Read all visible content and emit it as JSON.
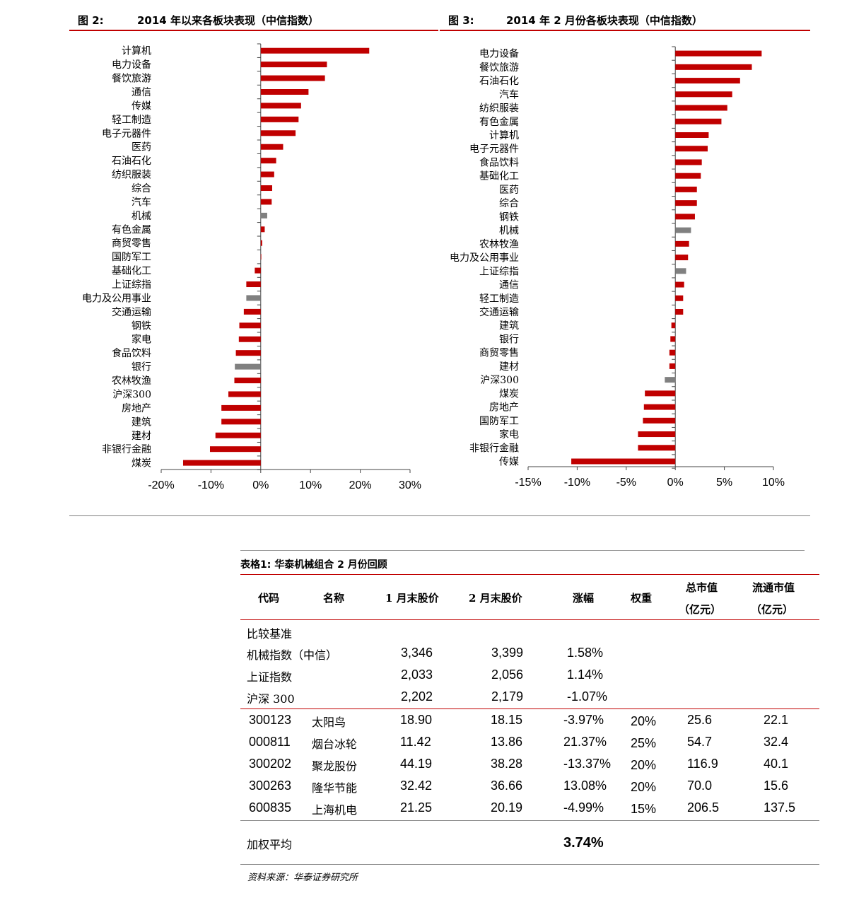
{
  "figure2": {
    "number": "图 2:",
    "title": "2014 年以来各板块表现（中信指数）"
  },
  "figure3": {
    "number": "图 3:",
    "title": "2014 年 2 月份各板块表现（中信指数）"
  },
  "chart_data": [
    {
      "type": "bar",
      "orientation": "horizontal",
      "title": "2014 年以来各板块表现（中信指数）",
      "xlim": [
        -20,
        30
      ],
      "x_ticks": [
        "-20%",
        "-10%",
        "0%",
        "10%",
        "20%",
        "30%"
      ],
      "x_tick_values": [
        -20,
        -10,
        0,
        10,
        20,
        30
      ],
      "grid": false,
      "colors": {
        "sector": "#c00000",
        "index": "#808080"
      },
      "categories": [
        "计算机",
        "电力设备",
        "餐饮旅游",
        "通信",
        "传媒",
        "轻工制造",
        "电子元器件",
        "医药",
        "石油石化",
        "纺织服装",
        "综合",
        "汽车",
        "机械",
        "有色金属",
        "商贸零售",
        "国防军工",
        "基础化工",
        "上证综指",
        "电力及公用事业",
        "交通运输",
        "钢铁",
        "家电",
        "食品饮料",
        "银行",
        "农林牧渔",
        "沪深300",
        "房地产",
        "建筑",
        "建材",
        "非银行金融",
        "煤炭"
      ],
      "values": [
        21.8,
        13.3,
        12.9,
        9.6,
        8.1,
        7.6,
        7.0,
        4.5,
        3.1,
        2.7,
        2.3,
        2.2,
        1.3,
        0.8,
        0.3,
        0.1,
        -1.2,
        -2.9,
        -2.9,
        -3.4,
        -4.3,
        -4.4,
        -5.0,
        -5.2,
        -5.3,
        -6.5,
        -7.9,
        -7.9,
        -9.1,
        -10.2,
        -15.6
      ],
      "highlight": [
        false,
        false,
        false,
        false,
        false,
        false,
        false,
        false,
        false,
        false,
        false,
        false,
        true,
        false,
        false,
        false,
        false,
        false,
        true,
        false,
        false,
        false,
        false,
        true,
        false,
        false,
        false,
        false,
        false,
        false,
        false
      ]
    },
    {
      "type": "bar",
      "orientation": "horizontal",
      "title": "2014 年 2 月份各板块表现（中信指数）",
      "xlim": [
        -15,
        10
      ],
      "x_ticks": [
        "-15%",
        "-10%",
        "-5%",
        "0%",
        "5%",
        "10%"
      ],
      "x_tick_values": [
        -15,
        -10,
        -5,
        0,
        5,
        10
      ],
      "grid": false,
      "colors": {
        "sector": "#c00000",
        "index": "#808080"
      },
      "categories": [
        "电力设备",
        "餐饮旅游",
        "石油石化",
        "汽车",
        "纺织服装",
        "有色金属",
        "计算机",
        "电子元器件",
        "食品饮料",
        "基础化工",
        "医药",
        "综合",
        "钢铁",
        "机械",
        "农林牧渔",
        "电力及公用事业",
        "上证综指",
        "通信",
        "轻工制造",
        "交通运输",
        "建筑",
        "银行",
        "商贸零售",
        "建材",
        "沪深300",
        "煤炭",
        "房地产",
        "国防军工",
        "家电",
        "非银行金融",
        "传媒"
      ],
      "values": [
        8.8,
        7.8,
        6.6,
        5.8,
        5.3,
        4.7,
        3.4,
        3.3,
        2.7,
        2.6,
        2.2,
        2.2,
        2.0,
        1.6,
        1.4,
        1.3,
        1.1,
        0.9,
        0.8,
        0.8,
        -0.4,
        -0.5,
        -0.6,
        -0.6,
        -1.07,
        -3.1,
        -3.2,
        -3.3,
        -3.8,
        -3.8,
        -10.6
      ],
      "highlight": [
        false,
        false,
        false,
        false,
        false,
        false,
        false,
        false,
        false,
        false,
        false,
        false,
        false,
        true,
        false,
        false,
        true,
        false,
        false,
        false,
        false,
        false,
        false,
        false,
        true,
        false,
        false,
        false,
        false,
        false,
        false
      ]
    }
  ],
  "table": {
    "title": "表格1:  华泰机械组合 2 月份回顾",
    "headers": {
      "code": "代码",
      "name": "名称",
      "jan_price": "1 月末股价",
      "feb_price": "2 月末股价",
      "change": "涨幅",
      "weight": "权重",
      "mcap_line1": "总市值",
      "mcap_line2": "（亿元）",
      "float_line1": "流通市值",
      "float_line2": "（亿元）"
    },
    "benchmark_label": "比较基准",
    "benchmarks": [
      {
        "name": "机械指数（中信）",
        "jan": "3,346",
        "feb": "3,399",
        "change": "1.58%"
      },
      {
        "name": "上证指数",
        "jan": "2,033",
        "feb": "2,056",
        "change": "1.14%"
      },
      {
        "name": "沪深 300",
        "jan": "2,202",
        "feb": "2,179",
        "change": "-1.07%"
      }
    ],
    "stocks": [
      {
        "code": "300123",
        "name": "太阳鸟",
        "jan": "18.90",
        "feb": "18.15",
        "change": "-3.97%",
        "weight": "20%",
        "mcap": "25.6",
        "float": "22.1"
      },
      {
        "code": "000811",
        "name": "烟台冰轮",
        "jan": "11.42",
        "feb": "13.86",
        "change": "21.37%",
        "weight": "25%",
        "mcap": "54.7",
        "float": "32.4"
      },
      {
        "code": "300202",
        "name": "聚龙股份",
        "jan": "44.19",
        "feb": "38.28",
        "change": "-13.37%",
        "weight": "20%",
        "mcap": "116.9",
        "float": "40.1"
      },
      {
        "code": "300263",
        "name": "隆华节能",
        "jan": "32.42",
        "feb": "36.66",
        "change": "13.08%",
        "weight": "20%",
        "mcap": "70.0",
        "float": "15.6"
      },
      {
        "code": "600835",
        "name": "上海机电",
        "jan": "21.25",
        "feb": "20.19",
        "change": "-4.99%",
        "weight": "15%",
        "mcap": "206.5",
        "float": "137.5"
      }
    ],
    "weighted_avg_label": "加权平均",
    "weighted_avg_value": "3.74%",
    "source": "资料来源：华泰证券研究所"
  }
}
